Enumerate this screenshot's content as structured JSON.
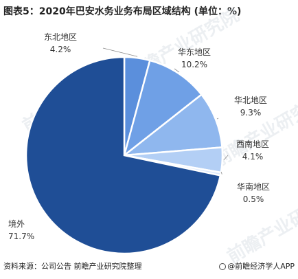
{
  "header": {
    "title": "图表5：2020年巴安水务业务布局区域结构 (单位：%)"
  },
  "footer": {
    "source": "资料来源：公司公告 前瞻产业研究院整理",
    "brand": "@前瞻经济学人APP"
  },
  "watermark": {
    "text": "前瞻产业研究院"
  },
  "colors": {
    "slices": [
      "#5b8fdc",
      "#6fa0e6",
      "#8fb7ee",
      "#b3cff5",
      "#dde9fb",
      "#1f4e96"
    ],
    "leader": "#888888"
  },
  "chart_data": {
    "type": "pie",
    "categories": [
      "东北地区",
      "华东地区",
      "华北地区",
      "西南地区",
      "华南地区",
      "境外"
    ],
    "values": [
      4.2,
      10.2,
      9.3,
      4.1,
      0.5,
      71.7
    ],
    "value_labels": [
      "4.2%",
      "10.2%",
      "9.3%",
      "4.1%",
      "0.5%",
      "71.7%"
    ],
    "start_angle": "12 o'clock",
    "direction": "clockwise"
  }
}
